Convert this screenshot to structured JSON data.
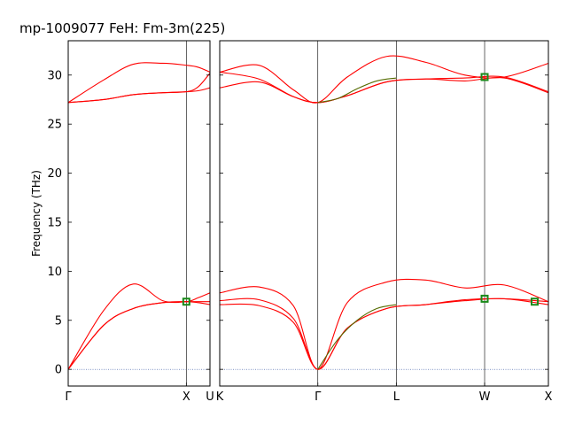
{
  "figure": {
    "title": "mp-1009077   FeH: Fm-3m(225)",
    "ylabel": "Frequency (THz)"
  },
  "chart_data": [
    {
      "type": "line",
      "panel": "left",
      "x_ticks": [
        "Γ",
        "X",
        "U"
      ],
      "ylim": [
        -1.7,
        33.5
      ],
      "yticks": [
        0,
        5,
        10,
        15,
        20,
        25,
        30
      ],
      "ylabel": "Frequency (THz)",
      "grid": false,
      "zero_line": true,
      "series": [
        {
          "color": "#ff0000",
          "x": [
            0,
            0.3,
            0.55,
            0.8,
            1.0,
            1.1,
            1.2
          ],
          "y": [
            0,
            6.0,
            8.7,
            7.0,
            6.9,
            7.3,
            7.8
          ]
        },
        {
          "color": "#ff0000",
          "x": [
            0,
            0.3,
            0.55,
            0.8,
            1.0,
            1.1,
            1.2
          ],
          "y": [
            0,
            4.5,
            6.2,
            6.8,
            6.9,
            6.9,
            6.9
          ]
        },
        {
          "color": "#ff0000",
          "x": [
            0,
            0.3,
            0.55,
            0.8,
            1.0,
            1.1,
            1.2
          ],
          "y": [
            0,
            4.5,
            6.2,
            6.8,
            6.9,
            6.8,
            6.6
          ]
        },
        {
          "color": "#ff0000",
          "x": [
            0,
            0.3,
            0.55,
            0.8,
            1.0,
            1.1,
            1.2
          ],
          "y": [
            27.2,
            29.5,
            31.1,
            31.2,
            31.0,
            30.8,
            30.3
          ]
        },
        {
          "color": "#ff0000",
          "x": [
            0,
            0.3,
            0.55,
            0.8,
            1.0,
            1.1,
            1.2
          ],
          "y": [
            27.2,
            27.5,
            28.0,
            28.2,
            28.3,
            28.8,
            30.2
          ]
        },
        {
          "color": "#ff0000",
          "x": [
            0,
            0.3,
            0.55,
            0.8,
            1.0,
            1.1,
            1.2
          ],
          "y": [
            27.2,
            27.5,
            28.0,
            28.2,
            28.3,
            28.4,
            28.7
          ]
        }
      ],
      "markers": [
        {
          "x": 1.0,
          "y": 6.9
        }
      ]
    },
    {
      "type": "line",
      "panel": "right",
      "x_ticks": [
        "K",
        "Γ",
        "L",
        "W",
        "X"
      ],
      "ylim": [
        -1.7,
        33.5
      ],
      "grid": false,
      "zero_line": true,
      "series": [
        {
          "color": "#ff0000",
          "x": [
            0,
            0.4,
            0.75,
            1.0,
            1.3,
            1.7,
            2.1,
            2.5,
            2.9,
            3.35
          ],
          "y": [
            7.8,
            8.4,
            6.5,
            0,
            6.8,
            8.9,
            9.1,
            8.3,
            8.6,
            6.9
          ]
        },
        {
          "color": "#ff0000",
          "x": [
            0,
            0.4,
            0.75,
            1.0,
            1.3,
            1.7,
            2.1,
            2.5,
            2.9,
            3.35
          ],
          "y": [
            7.0,
            7.1,
            5.2,
            0,
            4.2,
            6.2,
            6.6,
            7.1,
            7.2,
            6.9
          ]
        },
        {
          "color": "#ff0000",
          "x": [
            0,
            0.4,
            0.75,
            1.0,
            1.3,
            1.7,
            2.1,
            2.5,
            2.9,
            3.35
          ],
          "y": [
            6.6,
            6.5,
            4.8,
            0,
            4.2,
            6.2,
            6.6,
            7.0,
            7.2,
            6.6
          ]
        },
        {
          "color": "#ff0000",
          "x": [
            0,
            0.4,
            0.75,
            1.0,
            1.3,
            1.7,
            2.1,
            2.5,
            2.9,
            3.35
          ],
          "y": [
            30.3,
            31.0,
            28.5,
            27.2,
            29.8,
            31.9,
            31.3,
            30.0,
            29.8,
            31.2
          ]
        },
        {
          "color": "#ff0000",
          "x": [
            0,
            0.4,
            0.75,
            1.0,
            1.3,
            1.7,
            2.1,
            2.5,
            2.9,
            3.35
          ],
          "y": [
            30.3,
            29.6,
            27.8,
            27.2,
            27.9,
            29.3,
            29.6,
            29.7,
            29.8,
            28.3
          ]
        },
        {
          "color": "#ff0000",
          "x": [
            0,
            0.4,
            0.75,
            1.0,
            1.3,
            1.7,
            2.1,
            2.5,
            2.9,
            3.35
          ],
          "y": [
            28.7,
            29.3,
            27.8,
            27.2,
            27.9,
            29.3,
            29.6,
            29.4,
            29.7,
            28.2
          ]
        },
        {
          "color": "#556b00",
          "x": [
            1.0,
            1.2,
            1.4,
            1.6,
            1.8
          ],
          "y": [
            0,
            3.0,
            5.0,
            6.2,
            6.6
          ]
        },
        {
          "color": "#556b00",
          "x": [
            1.0,
            1.2,
            1.4,
            1.6,
            1.8
          ],
          "y": [
            27.2,
            27.6,
            28.6,
            29.4,
            29.7
          ]
        }
      ],
      "markers": [
        {
          "x": 2.7,
          "y": 7.2
        },
        {
          "x": 2.7,
          "y": 29.8
        },
        {
          "x": 3.21,
          "y": 6.9
        }
      ]
    }
  ]
}
